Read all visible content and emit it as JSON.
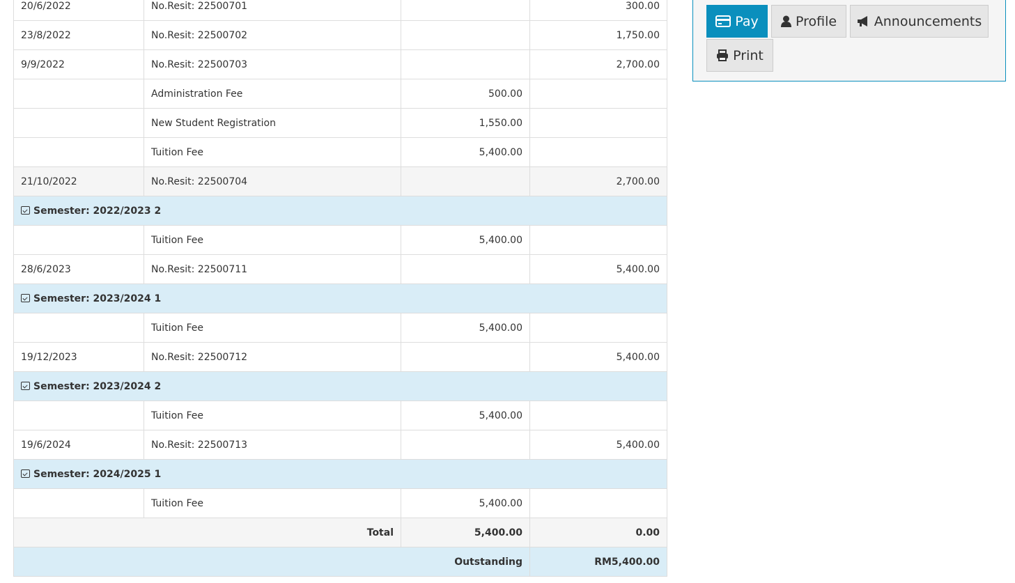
{
  "ledger": {
    "rows": [
      {
        "type": "row",
        "date": "20/6/2022",
        "desc": "No.Resit: 22500701",
        "debit": "",
        "credit": "300.00"
      },
      {
        "type": "row",
        "date": "23/8/2022",
        "desc": "No.Resit: 22500702",
        "debit": "",
        "credit": "1,750.00"
      },
      {
        "type": "row",
        "date": "9/9/2022",
        "desc": "No.Resit: 22500703",
        "debit": "",
        "credit": "2,700.00"
      },
      {
        "type": "row",
        "date": "",
        "desc": "Administration Fee",
        "debit": "500.00",
        "credit": ""
      },
      {
        "type": "row",
        "date": "",
        "desc": "New Student Registration",
        "debit": "1,550.00",
        "credit": ""
      },
      {
        "type": "row",
        "date": "",
        "desc": "Tuition Fee",
        "debit": "5,400.00",
        "credit": ""
      },
      {
        "type": "alt",
        "date": "21/10/2022",
        "desc": "No.Resit: 22500704",
        "debit": "",
        "credit": "2,700.00"
      },
      {
        "type": "sem",
        "label": "Semester: 2022/2023 2"
      },
      {
        "type": "row",
        "date": "",
        "desc": "Tuition Fee",
        "debit": "5,400.00",
        "credit": ""
      },
      {
        "type": "row",
        "date": "28/6/2023",
        "desc": "No.Resit: 22500711",
        "debit": "",
        "credit": "5,400.00"
      },
      {
        "type": "sem",
        "label": "Semester: 2023/2024 1"
      },
      {
        "type": "row",
        "date": "",
        "desc": "Tuition Fee",
        "debit": "5,400.00",
        "credit": ""
      },
      {
        "type": "row",
        "date": "19/12/2023",
        "desc": "No.Resit: 22500712",
        "debit": "",
        "credit": "5,400.00"
      },
      {
        "type": "sem",
        "label": "Semester: 2023/2024 2"
      },
      {
        "type": "row",
        "date": "",
        "desc": "Tuition Fee",
        "debit": "5,400.00",
        "credit": ""
      },
      {
        "type": "row",
        "date": "19/6/2024",
        "desc": "No.Resit: 22500713",
        "debit": "",
        "credit": "5,400.00"
      },
      {
        "type": "sem",
        "label": "Semester: 2024/2025 1"
      },
      {
        "type": "row",
        "date": "",
        "desc": "Tuition Fee",
        "debit": "5,400.00",
        "credit": ""
      }
    ],
    "total": {
      "label": "Total",
      "debit": "5,400.00",
      "credit": "0.00"
    },
    "outstanding": {
      "label": "Outstanding",
      "value": "RM5,400.00"
    }
  },
  "actions": {
    "pay": "Pay",
    "profile": "Profile",
    "announcements": "Announcements",
    "print": "Print"
  },
  "colors": {
    "primary": "#0a8fbd",
    "semester_bg": "#d9edf7"
  }
}
